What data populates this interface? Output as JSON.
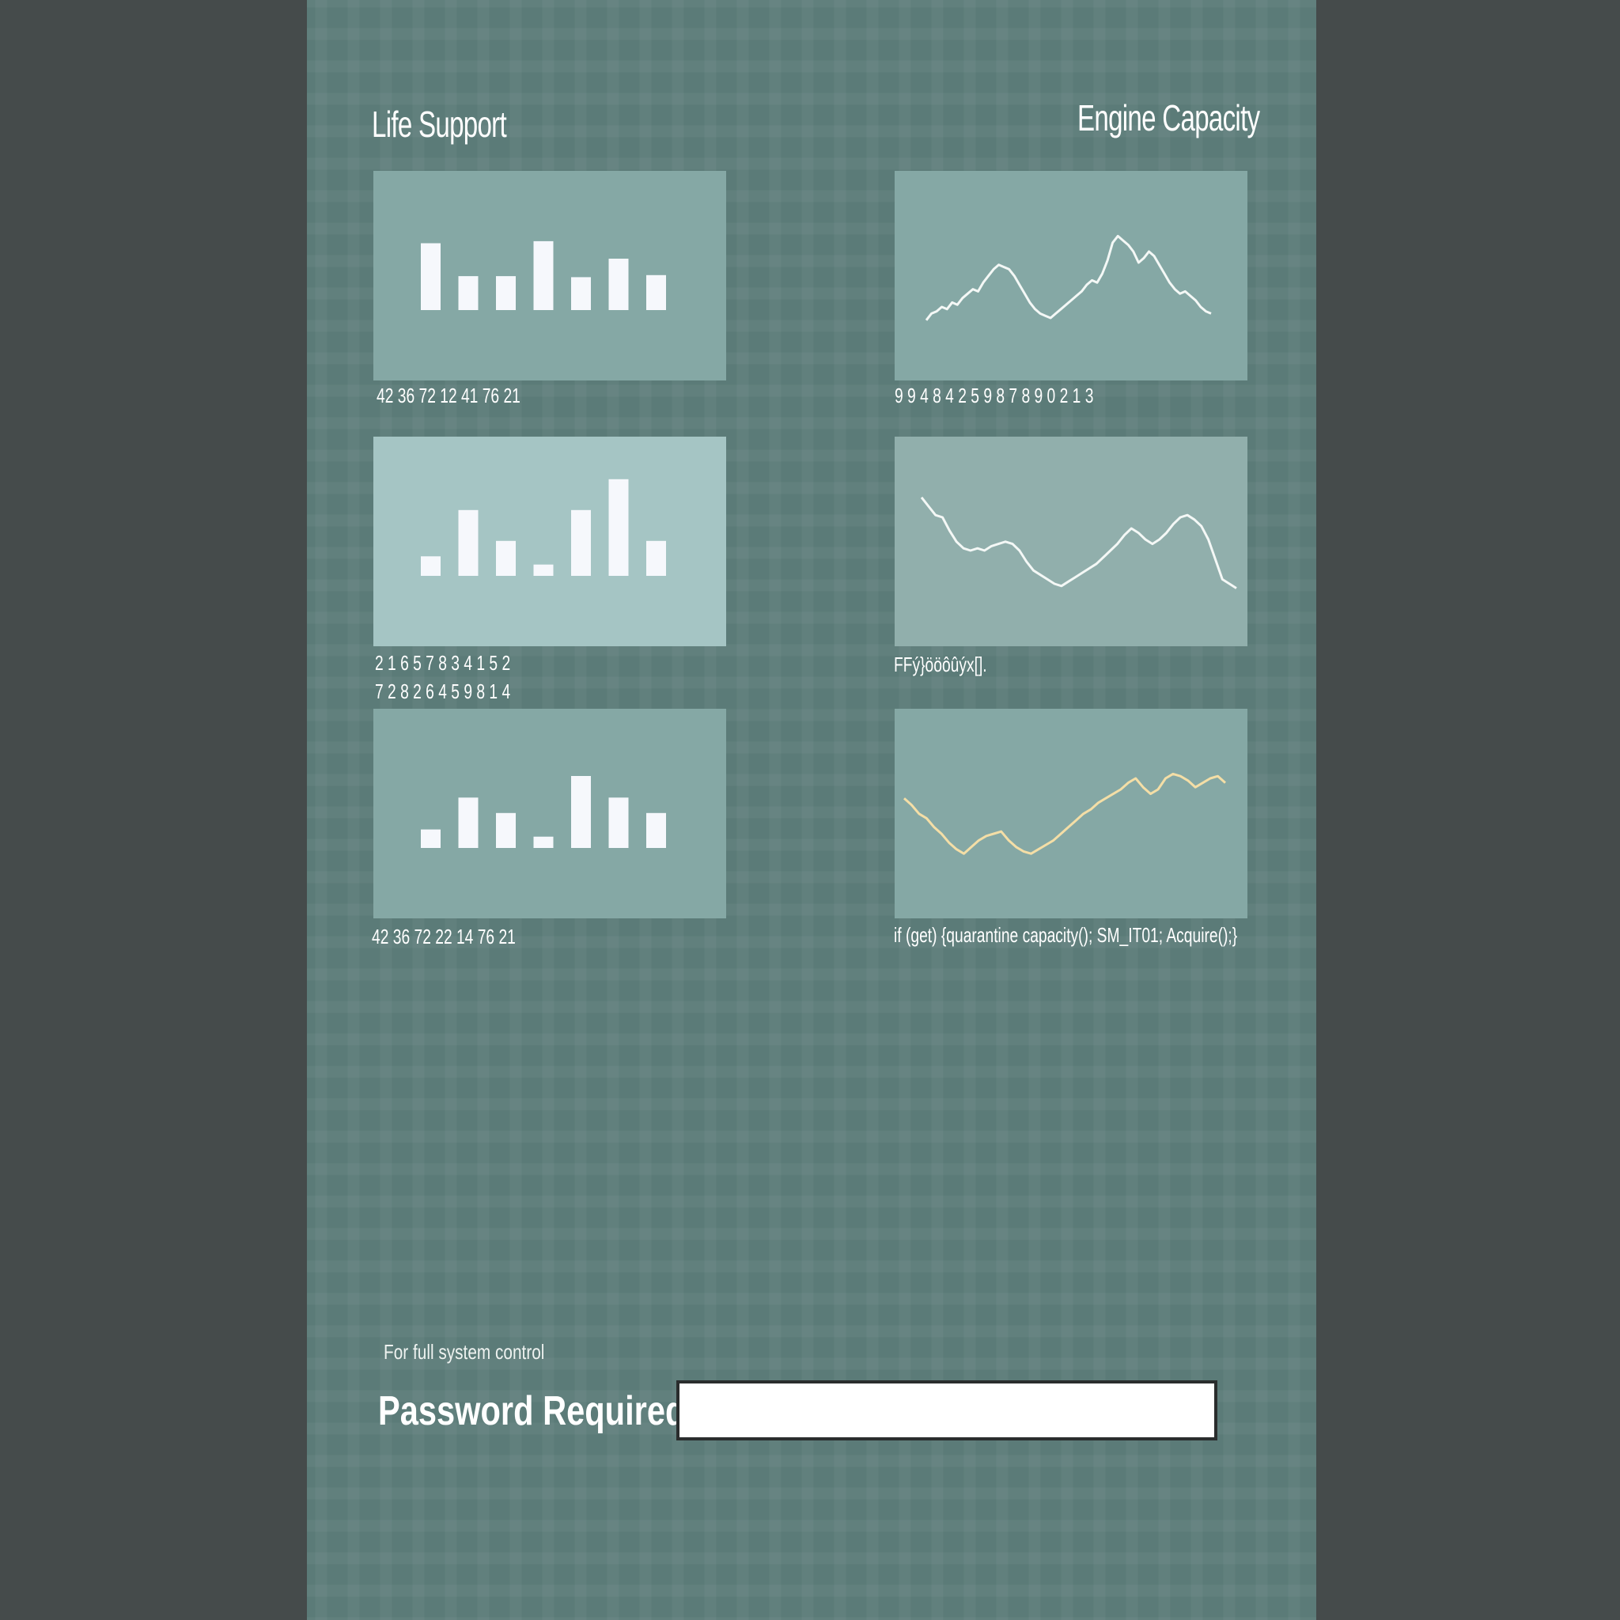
{
  "headings": {
    "life_support": "Life Support",
    "engine_capacity": "Engine Capacity"
  },
  "bar_charts": [
    {
      "values": [
        65,
        33,
        33,
        67,
        32,
        50,
        34
      ],
      "bg": "#85a8a5",
      "caption": "42 36 72 12 41 76 21"
    },
    {
      "values": [
        19,
        64,
        34,
        11,
        64,
        94,
        34
      ],
      "bg": "#a5c5c4",
      "caption": "2 1 6 5 7 8 3 4 1 5 2\n7 2 8 2 6 4 5 9 8 1 4"
    },
    {
      "values": [
        18,
        49,
        34,
        11,
        70,
        49,
        34
      ],
      "bg": "#85a8a5",
      "caption": "42 36 72 22 14 76 21"
    }
  ],
  "line_charts": [
    {
      "bg": "#85a8a5",
      "color": "#f4f8f6",
      "caption": "9 9 4 8  4 2 5 9 8 7 8 9 0 2 1 3",
      "values": [
        8,
        14,
        16,
        20,
        18,
        24,
        22,
        28,
        32,
        36,
        34,
        42,
        48,
        54,
        58,
        56,
        54,
        48,
        40,
        32,
        24,
        18,
        14,
        12,
        10,
        14,
        18,
        22,
        26,
        30,
        34,
        40,
        44,
        42,
        50,
        62,
        78,
        84,
        80,
        76,
        70,
        60,
        64,
        70,
        66,
        58,
        50,
        42,
        36,
        32,
        34,
        30,
        26,
        20,
        16,
        14
      ]
    },
    {
      "bg": "#91afac",
      "color": "#f4f8f6",
      "caption": "FFý}ööôûýx[].",
      "values": [
        88,
        80,
        72,
        70,
        58,
        48,
        42,
        40,
        42,
        40,
        44,
        46,
        48,
        46,
        40,
        30,
        22,
        18,
        14,
        10,
        8,
        12,
        16,
        20,
        24,
        28,
        34,
        40,
        46,
        54,
        60,
        56,
        50,
        46,
        50,
        56,
        64,
        70,
        72,
        68,
        62,
        50,
        32,
        14,
        10,
        6
      ]
    },
    {
      "bg": "#85a8a5",
      "color": "#f4dea6",
      "caption": "if (get) {quarantine capacity(); SM_IT01; Acquire();}",
      "values": [
        62,
        56,
        48,
        44,
        36,
        30,
        22,
        16,
        12,
        18,
        24,
        28,
        30,
        32,
        24,
        18,
        14,
        12,
        16,
        20,
        24,
        30,
        36,
        42,
        48,
        52,
        58,
        62,
        66,
        70,
        76,
        80,
        72,
        66,
        70,
        80,
        84,
        82,
        78,
        72,
        76,
        80,
        82,
        76
      ]
    }
  ],
  "footer": {
    "hint": "For full system control",
    "password_label": "Password Required",
    "password_value": ""
  }
}
